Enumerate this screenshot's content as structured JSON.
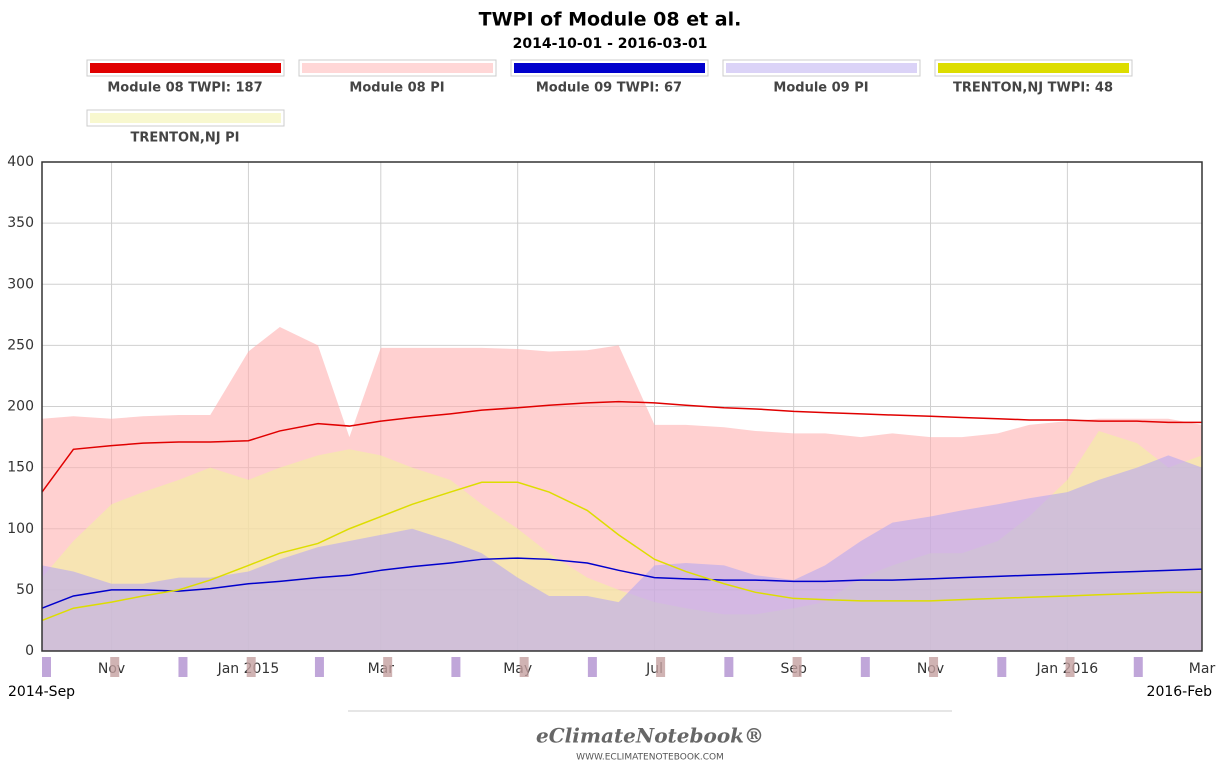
{
  "chart_data": {
    "type": "line",
    "title": "TWPI of Module 08 et al.",
    "subtitle": "2014-10-01 - 2016-03-01",
    "x": [
      "2014-10-01",
      "2014-10-15",
      "2014-11-01",
      "2014-11-15",
      "2014-12-01",
      "2014-12-15",
      "2015-01-01",
      "2015-01-15",
      "2015-02-01",
      "2015-02-15",
      "2015-03-01",
      "2015-03-15",
      "2015-04-01",
      "2015-04-15",
      "2015-05-01",
      "2015-05-15",
      "2015-06-01",
      "2015-06-15",
      "2015-07-01",
      "2015-07-15",
      "2015-08-01",
      "2015-08-15",
      "2015-09-01",
      "2015-09-15",
      "2015-10-01",
      "2015-10-15",
      "2015-11-01",
      "2015-11-15",
      "2015-12-01",
      "2015-12-15",
      "2016-01-01",
      "2016-01-15",
      "2016-02-01",
      "2016-02-15",
      "2016-03-01"
    ],
    "series": [
      {
        "name": "Module 08 PI",
        "style": "area",
        "color": "#ffb0b0",
        "values": [
          190,
          192,
          190,
          192,
          193,
          193,
          245,
          265,
          250,
          175,
          248,
          248,
          248,
          248,
          247,
          245,
          246,
          250,
          185,
          185,
          183,
          180,
          178,
          178,
          175,
          178,
          175,
          175,
          178,
          185,
          188,
          190,
          190,
          190,
          185
        ]
      },
      {
        "name": "TRENTON,NJ PI",
        "style": "area",
        "color": "#f2f2a0",
        "values": [
          60,
          90,
          120,
          130,
          140,
          150,
          140,
          150,
          160,
          165,
          160,
          150,
          140,
          120,
          100,
          80,
          60,
          50,
          40,
          35,
          30,
          30,
          35,
          40,
          60,
          70,
          80,
          80,
          90,
          110,
          140,
          180,
          170,
          150,
          160
        ]
      },
      {
        "name": "Module 09 PI",
        "style": "area",
        "color": "#b8a8f0",
        "values": [
          70,
          65,
          55,
          55,
          60,
          60,
          65,
          75,
          85,
          90,
          95,
          100,
          90,
          80,
          60,
          45,
          45,
          40,
          70,
          72,
          70,
          62,
          58,
          70,
          90,
          105,
          110,
          115,
          120,
          125,
          130,
          140,
          150,
          160,
          150
        ]
      },
      {
        "name": "Module 08 TWPI: 187",
        "style": "line",
        "color": "#e00000",
        "values": [
          130,
          165,
          168,
          170,
          171,
          171,
          172,
          180,
          186,
          184,
          188,
          191,
          194,
          197,
          199,
          201,
          203,
          204,
          203,
          201,
          199,
          198,
          196,
          195,
          194,
          193,
          192,
          191,
          190,
          189,
          189,
          188,
          188,
          187,
          187
        ]
      },
      {
        "name": "Module 09 TWPI: 67",
        "style": "line",
        "color": "#0000cc",
        "values": [
          35,
          45,
          50,
          50,
          49,
          51,
          55,
          57,
          60,
          62,
          66,
          69,
          72,
          75,
          76,
          75,
          72,
          66,
          60,
          59,
          58,
          58,
          57,
          57,
          58,
          58,
          59,
          60,
          61,
          62,
          63,
          64,
          65,
          66,
          67
        ]
      },
      {
        "name": "TRENTON,NJ TWPI: 48",
        "style": "line",
        "color": "#dddd00",
        "values": [
          25,
          35,
          40,
          45,
          50,
          58,
          70,
          80,
          88,
          100,
          110,
          120,
          130,
          138,
          138,
          130,
          115,
          95,
          75,
          65,
          55,
          48,
          43,
          42,
          41,
          41,
          41,
          42,
          43,
          44,
          45,
          46,
          47,
          48,
          48
        ]
      }
    ],
    "legend_order": [
      3,
      0,
      4,
      2,
      5,
      1
    ],
    "xlim": [
      "2014-10-01",
      "2016-03-01"
    ],
    "xticks": [
      {
        "value": "2014-11-01",
        "label": "Nov"
      },
      {
        "value": "2015-01-01",
        "label": "Jan 2015"
      },
      {
        "value": "2015-03-01",
        "label": "Mar"
      },
      {
        "value": "2015-05-01",
        "label": "May"
      },
      {
        "value": "2015-07-01",
        "label": "Jul"
      },
      {
        "value": "2015-09-01",
        "label": "Sep"
      },
      {
        "value": "2015-11-01",
        "label": "Nov"
      },
      {
        "value": "2016-01-01",
        "label": "Jan 2016"
      },
      {
        "value": "2016-03-01",
        "label": "Mar"
      }
    ],
    "ylim": [
      0,
      400
    ],
    "yticks": [
      0,
      50,
      100,
      150,
      200,
      250,
      300,
      350,
      400
    ],
    "grid": true,
    "navigator_labels": [
      "2014-Sep",
      "2016-Feb"
    ]
  },
  "footer": {
    "brand": "eClimateNotebook®",
    "url": "WWW.ECLIMATENOTEBOOK.COM"
  }
}
